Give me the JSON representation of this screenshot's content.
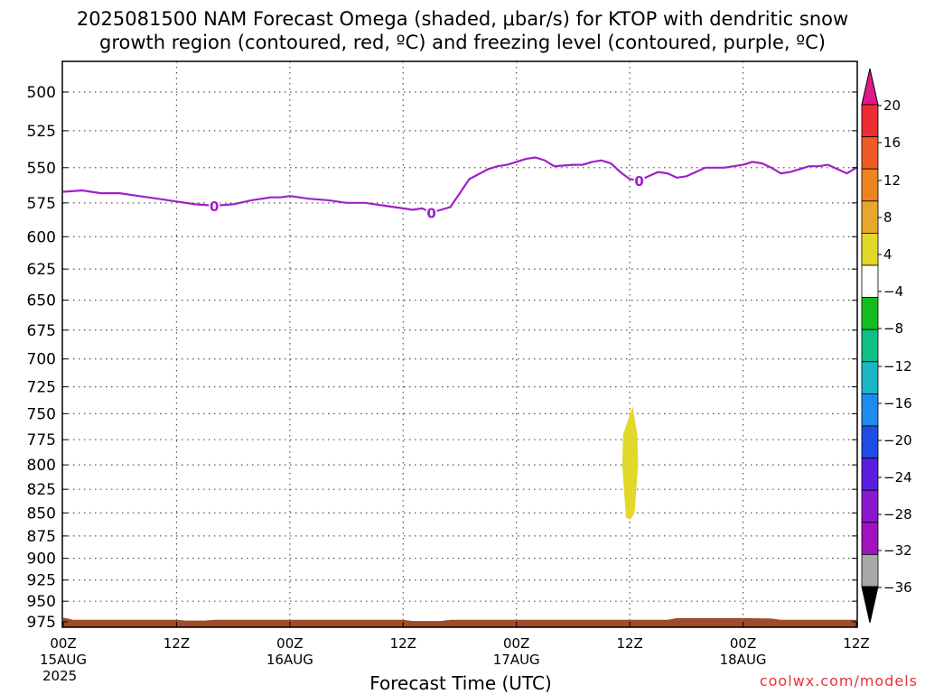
{
  "title_line1": "2025081500 NAM Forecast Omega (shaded, μbar/s) for KTOP with dendritic snow",
  "title_line2": "growth region (contoured, red, ºC) and freezing level (contoured, purple, ºC)",
  "xaxis_title": "Forecast Time (UTC)",
  "credit": "coolwx.com/models",
  "contour_label": "0",
  "chart_data": {
    "type": "line",
    "title": "2025081500 NAM Forecast Omega (shaded, μbar/s) for KTOP with dendritic snow growth region (contoured, red, ºC) and freezing level (contoured, purple, ºC)",
    "xlabel": "Forecast Time (UTC)",
    "ylabel": "",
    "xlim": [
      0,
      84
    ],
    "ylim": [
      500,
      975
    ],
    "y_scale": "log-pressure, reversed (500 top, 975 bottom)",
    "grid": true,
    "y_ticks": [
      500,
      525,
      550,
      575,
      600,
      625,
      650,
      675,
      700,
      725,
      750,
      775,
      800,
      825,
      850,
      875,
      900,
      925,
      950,
      975
    ],
    "x_ticks": [
      {
        "h": 0,
        "label": "00Z",
        "sub": "15AUG",
        "sub2": "2025"
      },
      {
        "h": 12,
        "label": "12Z",
        "sub": "",
        "sub2": ""
      },
      {
        "h": 24,
        "label": "00Z",
        "sub": "16AUG",
        "sub2": ""
      },
      {
        "h": 36,
        "label": "12Z",
        "sub": "",
        "sub2": ""
      },
      {
        "h": 48,
        "label": "00Z",
        "sub": "17AUG",
        "sub2": ""
      },
      {
        "h": 60,
        "label": "12Z",
        "sub": "",
        "sub2": ""
      },
      {
        "h": 72,
        "label": "00Z",
        "sub": "18AUG",
        "sub2": ""
      },
      {
        "h": 84,
        "label": "12Z",
        "sub": "",
        "sub2": ""
      }
    ],
    "freezing_level_color": "#a020c8",
    "freezing_level_hpa": [
      [
        0,
        567
      ],
      [
        2,
        566
      ],
      [
        4,
        568
      ],
      [
        6,
        568
      ],
      [
        8,
        570
      ],
      [
        10,
        572
      ],
      [
        12,
        574
      ],
      [
        14,
        576
      ],
      [
        16,
        577
      ],
      [
        18,
        576
      ],
      [
        20,
        573
      ],
      [
        22,
        571
      ],
      [
        23,
        571
      ],
      [
        24,
        570
      ],
      [
        26,
        572
      ],
      [
        28,
        573
      ],
      [
        30,
        575
      ],
      [
        32,
        575
      ],
      [
        34,
        577
      ],
      [
        36,
        579
      ],
      [
        37,
        580
      ],
      [
        38,
        579
      ],
      [
        39,
        582
      ],
      [
        40,
        580
      ],
      [
        41,
        578
      ],
      [
        42,
        568
      ],
      [
        43,
        558
      ],
      [
        45,
        551
      ],
      [
        46,
        549
      ],
      [
        47,
        548
      ],
      [
        48,
        546
      ],
      [
        49,
        544
      ],
      [
        50,
        543
      ],
      [
        51,
        545
      ],
      [
        52,
        549
      ],
      [
        54,
        548
      ],
      [
        55,
        548
      ],
      [
        56,
        546
      ],
      [
        57,
        545
      ],
      [
        58,
        547
      ],
      [
        59,
        553
      ],
      [
        60,
        558
      ],
      [
        61,
        559
      ],
      [
        62,
        556
      ],
      [
        63,
        553
      ],
      [
        64,
        554
      ],
      [
        65,
        557
      ],
      [
        66,
        556
      ],
      [
        67,
        553
      ],
      [
        68,
        550
      ],
      [
        70,
        550
      ],
      [
        72,
        548
      ],
      [
        73,
        546
      ],
      [
        74,
        547
      ],
      [
        75,
        550
      ],
      [
        76,
        554
      ],
      [
        77,
        553
      ],
      [
        78,
        551
      ],
      [
        79,
        549
      ],
      [
        80,
        549
      ],
      [
        81,
        548
      ],
      [
        82,
        551
      ],
      [
        83,
        554
      ],
      [
        84,
        550
      ],
      [
        85,
        547
      ],
      [
        86,
        552
      ]
    ],
    "contour_label_positions_h": [
      16,
      39,
      61
    ],
    "omega_shading": [
      {
        "name": "weak ascent (4 to 8)",
        "color": "#e1d82a",
        "polygon_h_hpa": [
          [
            59.6,
            855
          ],
          [
            59.2,
            800
          ],
          [
            59.3,
            770
          ],
          [
            60.3,
            743
          ],
          [
            60.8,
            770
          ],
          [
            60.9,
            800
          ],
          [
            60.5,
            850
          ],
          [
            60.1,
            857
          ]
        ]
      }
    ],
    "ground_color": "#a04b2b",
    "ground_top_hpa": [
      [
        0,
        970
      ],
      [
        0.5,
        971
      ],
      [
        1,
        972.5
      ],
      [
        12,
        972.5
      ],
      [
        13,
        973.5
      ],
      [
        15,
        973.5
      ],
      [
        16,
        972.5
      ],
      [
        36,
        972.5
      ],
      [
        37,
        974
      ],
      [
        40,
        974
      ],
      [
        41,
        972.5
      ],
      [
        64,
        972.5
      ],
      [
        65,
        970.5
      ],
      [
        72,
        970.5
      ],
      [
        75,
        971
      ],
      [
        76,
        972.5
      ],
      [
        84,
        972.5
      ]
    ],
    "colorbar": {
      "labels": [
        "20",
        "16",
        "12",
        "8",
        "4",
        "−4",
        "−8",
        "−12",
        "−16",
        "−20",
        "−24",
        "−28",
        "−32",
        "−36"
      ],
      "colors": [
        "#e01888",
        "#ee2c34",
        "#f05a24",
        "#ee8420",
        "#e6a82c",
        "#e1d82a",
        "#ffffff",
        "#13bd1d",
        "#0fbf84",
        "#1bb6c6",
        "#1c8cee",
        "#1f4ce4",
        "#5a1ce0",
        "#8a16d0",
        "#a012c0",
        "#a8a8a8",
        "#000000"
      ]
    }
  }
}
